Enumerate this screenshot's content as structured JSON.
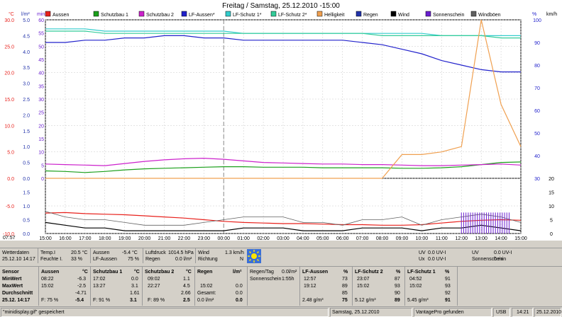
{
  "colors": {
    "aussen": "#e8211c",
    "schutzbau1": "#1a9f1a",
    "schutzbau2": "#cc22cc",
    "lfaussen": "#2222cc",
    "lfschutz1": "#33cccc",
    "lfschutz2": "#33cc99",
    "helligkeit": "#f0a050",
    "regen": "#2233aa",
    "wind": "#000000",
    "sonnenschein": "#6a1fd0",
    "windboeen": "#606060"
  },
  "chart": {
    "title": "Freitag / Samstag, 25.12.2010  -15:00",
    "legend": [
      {
        "label": "Aussen",
        "color": "#e8211c"
      },
      {
        "label": "Schutzbau 1",
        "color": "#1a9f1a"
      },
      {
        "label": "Schutzbau 2",
        "color": "#cc22cc"
      },
      {
        "label": "LF-Aussen*",
        "color": "#2222cc"
      },
      {
        "label": "LF-Schutz 1*",
        "color": "#33cccc"
      },
      {
        "label": "LF-Schutz 2*",
        "color": "#33cc99"
      },
      {
        "label": "Helligkeit",
        "color": "#f0a050"
      },
      {
        "label": "Regen",
        "color": "#2233aa"
      },
      {
        "label": "Wind",
        "color": "#000000"
      },
      {
        "label": "Sonnenschein",
        "color": "#6a1fd0"
      },
      {
        "label": "Windböen",
        "color": "#606060"
      }
    ],
    "axis_units": {
      "temp": "°C",
      "rain": "l/m²",
      "min": "min",
      "pct": "%",
      "wind": "km/h"
    },
    "y_temp_ticks": [
      "30.0",
      "25.0",
      "20.0",
      "15.0",
      "10.0",
      "5.0",
      "0.0",
      "-5.0",
      "-10.0"
    ],
    "y_rain_ticks": [
      "5.0",
      "4.5",
      "4.0",
      "3.5",
      "3.0",
      "2.5",
      "2.0",
      "1.5",
      "1.0",
      "0.5",
      "0.0",
      "1.5",
      "1.0",
      "0.5",
      "0.0"
    ],
    "y_min_ticks": [
      "60",
      "55",
      "50",
      "45",
      "40",
      "35",
      "30",
      "25",
      "20",
      "15",
      "10",
      "5",
      "0"
    ],
    "y_pct_ticks": [
      "100",
      "90",
      "80",
      "70",
      "60",
      "50",
      "40",
      "30"
    ],
    "y_wind_ticks": [
      "20",
      "15",
      "10",
      "5",
      "0"
    ],
    "x_ticks": [
      "15:00",
      "16:00",
      "17:00",
      "18:00",
      "19:00",
      "20:00",
      "21:00",
      "22:00",
      "23:00",
      "00:00",
      "01:00",
      "02:00",
      "03:00",
      "04:00",
      "05:00",
      "06:00",
      "07:00",
      "08:00",
      "09:00",
      "10:00",
      "11:00",
      "12:00",
      "13:00",
      "14:00",
      "15:00"
    ],
    "marker_labels": [
      "07:57",
      "16:23",
      "20:38",
      "08:27",
      "10:40"
    ]
  },
  "chart_data": {
    "type": "line",
    "x": [
      "15:00",
      "16:00",
      "17:00",
      "18:00",
      "19:00",
      "20:00",
      "21:00",
      "22:00",
      "23:00",
      "00:00",
      "01:00",
      "02:00",
      "03:00",
      "04:00",
      "05:00",
      "06:00",
      "07:00",
      "08:00",
      "09:00",
      "10:00",
      "11:00",
      "12:00",
      "13:00",
      "14:00",
      "15:00"
    ],
    "series": [
      {
        "name": "Aussen",
        "values": [
          -6.3,
          -6.2,
          -6.4,
          -6.5,
          -6.6,
          -6.8,
          -7.0,
          -7.2,
          -7.5,
          -7.8,
          -8.0,
          -8.1,
          -8.2,
          -8.2,
          -8.3,
          -8.4,
          -8.4,
          -8.5,
          -8.5,
          -8.4,
          -8.1,
          -7.8,
          -7.6,
          -7.5,
          -7.6
        ]
      },
      {
        "name": "Schutzbau 1",
        "values": [
          1.4,
          1.3,
          1.1,
          1.3,
          1.6,
          1.8,
          1.9,
          2.0,
          2.1,
          2.2,
          2.2,
          2.1,
          2.1,
          2.1,
          2.0,
          2.0,
          2.0,
          2.0,
          1.9,
          1.9,
          2.0,
          2.2,
          2.6,
          3.0,
          3.1
        ]
      },
      {
        "name": "Schutzbau 2",
        "values": [
          2.7,
          2.6,
          2.5,
          2.4,
          2.8,
          3.2,
          3.5,
          3.7,
          3.8,
          3.6,
          3.3,
          3.0,
          2.9,
          2.8,
          2.7,
          2.7,
          2.6,
          2.6,
          2.5,
          2.4,
          2.4,
          2.5,
          2.6,
          2.7,
          2.5
        ]
      },
      {
        "name": "LF-Aussen*",
        "values": [
          90,
          90,
          91,
          91,
          92,
          92,
          93,
          93,
          92,
          92,
          91,
          91,
          91,
          91,
          91,
          91,
          90,
          89,
          87,
          85,
          82,
          80,
          78,
          77,
          77
        ]
      },
      {
        "name": "LF-Schutz 1*",
        "values": [
          96,
          96,
          96,
          95,
          95,
          95,
          95,
          95,
          95,
          95,
          94,
          94,
          94,
          94,
          94,
          94,
          94,
          94,
          94,
          94,
          93,
          93,
          93,
          93,
          93
        ]
      },
      {
        "name": "LF-Schutz 2*",
        "values": [
          95,
          95,
          95,
          94,
          94,
          94,
          94,
          94,
          94,
          94,
          94,
          94,
          94,
          94,
          94,
          94,
          94,
          93,
          93,
          93,
          93,
          93,
          93,
          92,
          92
        ]
      },
      {
        "name": "Helligkeit",
        "values": [
          0,
          0,
          0,
          0,
          0,
          0,
          0,
          0,
          0,
          0,
          0,
          0,
          0,
          0,
          0,
          0,
          0,
          0,
          9,
          9,
          10,
          12,
          60,
          28,
          12
        ]
      },
      {
        "name": "Wind",
        "values": [
          4,
          3,
          2,
          2,
          1,
          1,
          1,
          1,
          1,
          1,
          2,
          2,
          2,
          1,
          1,
          1,
          2,
          2,
          2,
          1,
          2,
          2,
          3,
          2,
          1
        ]
      },
      {
        "name": "Windböen",
        "values": [
          8,
          6,
          5,
          5,
          4,
          3,
          3,
          3,
          4,
          5,
          6,
          6,
          6,
          4,
          4,
          3,
          5,
          5,
          6,
          3,
          5,
          6,
          7,
          6,
          4
        ]
      }
    ],
    "xlabel": "",
    "ylabel": "°C",
    "ylim": [
      -10,
      30
    ],
    "legend_position": "top"
  },
  "info": {
    "row1": {
      "wetterdaten": "Wetterdaten",
      "wetter_date": "25.12.10 14:17",
      "temp_label": "Temp.I",
      "temp_val": "20.5 °C",
      "feuchte_label": "Feuchte I.",
      "feuchte_val": "33 %",
      "aussen_label": "Aussen",
      "aussen_val": "-5.4 °C",
      "lfaussen_label": "LF-Aussen",
      "lfaussen_val": "75 %",
      "luftdruck_label": "Luftdruck",
      "luftdruck_val": "1014.5 hPa",
      "regen_label": "Regen",
      "regen_val": "0.0 l/m²",
      "wind_label": "Wind",
      "wind_val": "1.3 km/h",
      "richtung_label": "Richtung",
      "richtung_val": "N",
      "uv1_label": "UV",
      "uv1_val": "0.0 UV-I",
      "ux1_label": "Ux",
      "ux1_val": "0.0 UV-I",
      "uv2_label": "UV",
      "uv2_val": "0.0 UV-I",
      "sonnen_label": "Sonnenschein",
      "sonnen_val": "0 min"
    },
    "table": {
      "sensor": "Sensor",
      "minwert": "MinWert",
      "maxwert": "MaxWert",
      "durchschnitt": "Durchschnitt",
      "current_date": "25.12. 14:17",
      "aussen": {
        "title": "Aussen",
        "unit": "°C",
        "min_t": "08:22",
        "min_v": "-6.3",
        "max_t": "15:02",
        "max_v": "-2.5",
        "avg_v": "-4.71",
        "cur_l": "F: 75 %",
        "cur_v": "-5.4"
      },
      "sb1": {
        "title": "Schutzbau 1",
        "unit": "°C",
        "min_t": "17:02",
        "min_v": "0.0",
        "max_t": "13:27",
        "max_v": "3.1",
        "avg_v": "1.61",
        "cur_l": "F: 91 %",
        "cur_v": "3.1"
      },
      "sb2": {
        "title": "Schutzbau 2",
        "unit": "°C",
        "min_t": "09:02",
        "min_v": "1.1",
        "max_t": "22:27",
        "max_v": "4.5",
        "avg_v": "2.66",
        "cur_l": "F: 89 %",
        "cur_v": "2.5"
      },
      "regen": {
        "title": "Regen",
        "unit": "l/m²",
        "max_t": "15:02",
        "max_v": "0.0",
        "gesamt_l": "Gesamt:",
        "gesamt_v": "0.0",
        "cur_l": "0.0 l/m²",
        "cur_v": "0.0"
      },
      "regentag": {
        "label": "Regen/Tag",
        "val": "0.0l/m²",
        "sonnen_label": "Sonnenschein",
        "sonnen_val": "1:55h"
      },
      "lfaussen": {
        "title": "LF-Aussen",
        "unit": "%",
        "min_t": "12:57",
        "min_v": "73",
        "max_t": "19:12",
        "max_v": "89",
        "avg_v": "85",
        "cur_l": "2.48 g/m³",
        "cur_v": "75"
      },
      "lfs2": {
        "title": "LF-Schutz 2",
        "unit": "%",
        "min_t": "23:07",
        "min_v": "87",
        "max_t": "15:02",
        "max_v": "93",
        "avg_v": "90",
        "cur_l": "5.12 g/m³",
        "cur_v": "89"
      },
      "lfs1": {
        "title": "LF-Schutz 1",
        "unit": "%",
        "min_t": "04:52",
        "min_v": "91",
        "max_t": "15:02",
        "max_v": "93",
        "avg_v": "92",
        "cur_l": "5.45 g/m³",
        "cur_v": "91"
      }
    }
  },
  "status": {
    "file": "\"minidisplay.gif\"  gespeichert",
    "date": "Samstag, 25.12.2010",
    "device": "VantagePro gefunden",
    "usb": "USB",
    "time": "14:21",
    "date2": "25.12.2010"
  }
}
